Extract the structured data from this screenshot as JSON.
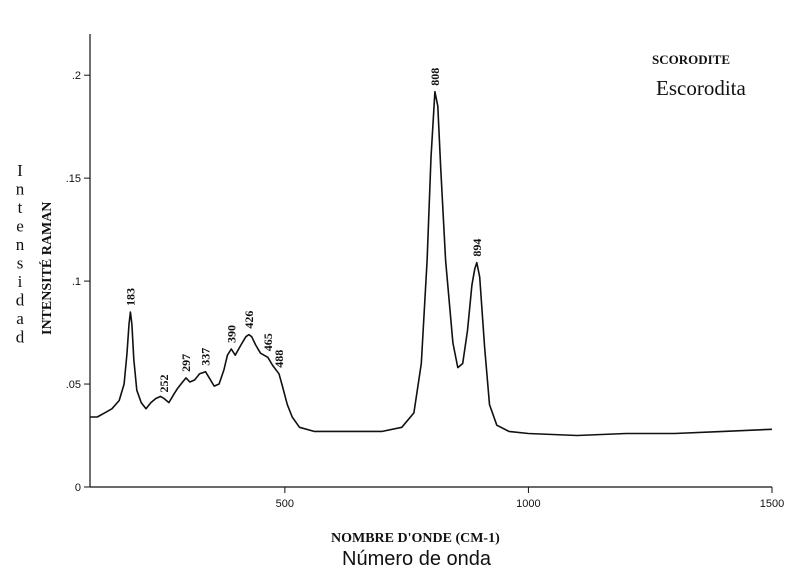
{
  "chart_data": {
    "type": "line",
    "title": "SCORODITE",
    "subtitle": "Escorodita",
    "xlabel": "NOMBRE D'ONDE (CM-1)",
    "xlabel_secondary": "Número de onda",
    "ylabel": "INTENSITÉ RAMAN",
    "ylabel_secondary": "Intensidad",
    "xlim": [
      100,
      1500
    ],
    "ylim": [
      0,
      0.22
    ],
    "x_ticks": [
      500,
      1000,
      1500
    ],
    "x_tick_labels": [
      "500",
      "1000",
      "1500"
    ],
    "y_ticks": [
      0,
      0.05,
      0.1,
      0.15,
      0.2
    ],
    "y_tick_labels": [
      "0",
      ".05",
      ".1",
      ".15",
      ".2"
    ],
    "grid": false,
    "series": [
      {
        "x": [
          100,
          115,
          130,
          145,
          160,
          170,
          176,
          180,
          183,
          186,
          190,
          196,
          205,
          215,
          225,
          235,
          245,
          252,
          262,
          272,
          280,
          290,
          297,
          305,
          315,
          325,
          337,
          345,
          355,
          365,
          375,
          382,
          390,
          398,
          410,
          420,
          426,
          432,
          440,
          450,
          465,
          475,
          488,
          495,
          505,
          515,
          530,
          560,
          600,
          650,
          700,
          740,
          765,
          780,
          792,
          800,
          808,
          814,
          820,
          830,
          845,
          855,
          865,
          875,
          884,
          890,
          894,
          900,
          910,
          920,
          935,
          960,
          1000,
          1100,
          1200,
          1300,
          1400,
          1500
        ],
        "y": [
          0.034,
          0.034,
          0.036,
          0.038,
          0.042,
          0.05,
          0.065,
          0.079,
          0.085,
          0.079,
          0.062,
          0.047,
          0.041,
          0.038,
          0.041,
          0.043,
          0.044,
          0.043,
          0.041,
          0.045,
          0.048,
          0.051,
          0.053,
          0.051,
          0.052,
          0.055,
          0.056,
          0.053,
          0.049,
          0.05,
          0.057,
          0.064,
          0.067,
          0.064,
          0.069,
          0.073,
          0.074,
          0.073,
          0.069,
          0.065,
          0.063,
          0.059,
          0.055,
          0.049,
          0.04,
          0.034,
          0.029,
          0.027,
          0.027,
          0.027,
          0.027,
          0.029,
          0.036,
          0.06,
          0.11,
          0.16,
          0.192,
          0.185,
          0.155,
          0.11,
          0.07,
          0.058,
          0.06,
          0.076,
          0.098,
          0.106,
          0.109,
          0.102,
          0.068,
          0.04,
          0.03,
          0.027,
          0.026,
          0.025,
          0.026,
          0.026,
          0.027,
          0.028
        ]
      }
    ],
    "peak_labels": [
      {
        "x": 183,
        "y": 0.085,
        "text": "183"
      },
      {
        "x": 252,
        "y": 0.043,
        "text": "252"
      },
      {
        "x": 297,
        "y": 0.053,
        "text": "297"
      },
      {
        "x": 337,
        "y": 0.056,
        "text": "337"
      },
      {
        "x": 390,
        "y": 0.067,
        "text": "390"
      },
      {
        "x": 426,
        "y": 0.074,
        "text": "426"
      },
      {
        "x": 465,
        "y": 0.063,
        "text": "465"
      },
      {
        "x": 488,
        "y": 0.055,
        "text": "488"
      },
      {
        "x": 808,
        "y": 0.192,
        "text": "808"
      },
      {
        "x": 894,
        "y": 0.109,
        "text": "894"
      }
    ]
  }
}
